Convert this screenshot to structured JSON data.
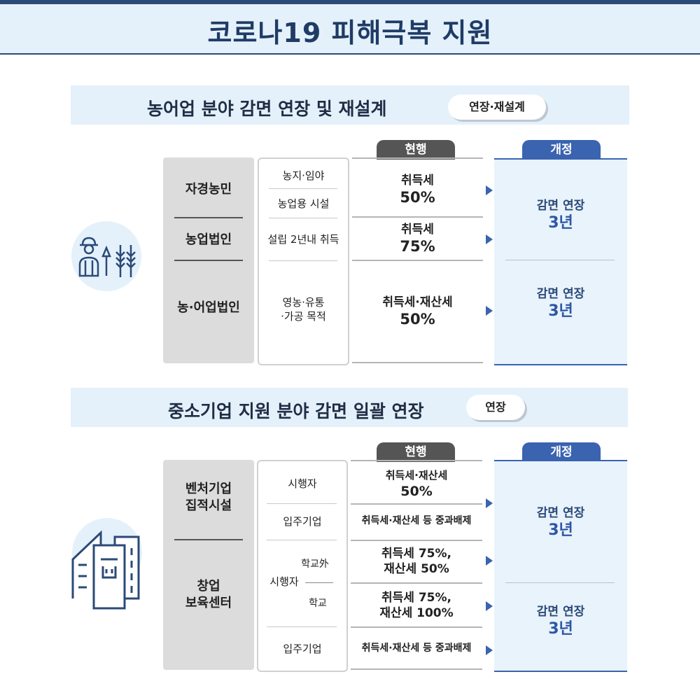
{
  "title": "코로나19 피해극복 지원",
  "section1": {
    "title": "농어업 분야 감면 연장 및 재설계",
    "badge": "연장·재설계",
    "current_tag": "현행",
    "new_tag": "개정",
    "categories": [
      "자경농민",
      "농업법인",
      "농·어업법인"
    ],
    "subs": [
      "농지·임야",
      "농업용 시설",
      "설립 2년내 취득",
      "영농·유통",
      "·가공 목적"
    ],
    "current": [
      {
        "line1": "취득세",
        "line2": "50%"
      },
      {
        "line1": "취득세",
        "line2": "75%"
      },
      {
        "line1": "취득세·재산세",
        "line2": "50%"
      }
    ],
    "revised": [
      {
        "line1": "감면 연장",
        "line2": "3년"
      },
      {
        "line1": "감면 연장",
        "line2": "3년"
      }
    ],
    "icon": "farmer-icon"
  },
  "section2": {
    "title": "중소기업 지원 분야 감면 일괄 연장",
    "badge": "연장",
    "current_tag": "현행",
    "new_tag": "개정",
    "categories": [
      "벤처기업",
      "집적시설",
      "창업",
      "보육센터"
    ],
    "subs": {
      "s1": "시행자",
      "s2": "입주기업",
      "s3": "시행자",
      "s3a": "학교外",
      "s3b": "학교",
      "s4": "입주기업"
    },
    "current": [
      {
        "line1": "취득세·재산세",
        "line2": "50%"
      },
      {
        "line1": "취득세·재산세 등 중과배제",
        "line2": ""
      },
      {
        "line1": "취득세 75%,",
        "line2": "재산세 50%"
      },
      {
        "line1": "취득세 75%,",
        "line2": "재산세 100%"
      },
      {
        "line1": "취득세·재산세 등 중과배제",
        "line2": ""
      }
    ],
    "revised": [
      {
        "line1": "감면 연장",
        "line2": "3년"
      },
      {
        "line1": "감면 연장",
        "line2": "3년"
      }
    ],
    "icon": "buildings-icon"
  },
  "colors": {
    "navy": "#1f3b66",
    "accent": "#3a63b0",
    "band": "#e4f1fb",
    "panel": "#e8f3fc"
  }
}
